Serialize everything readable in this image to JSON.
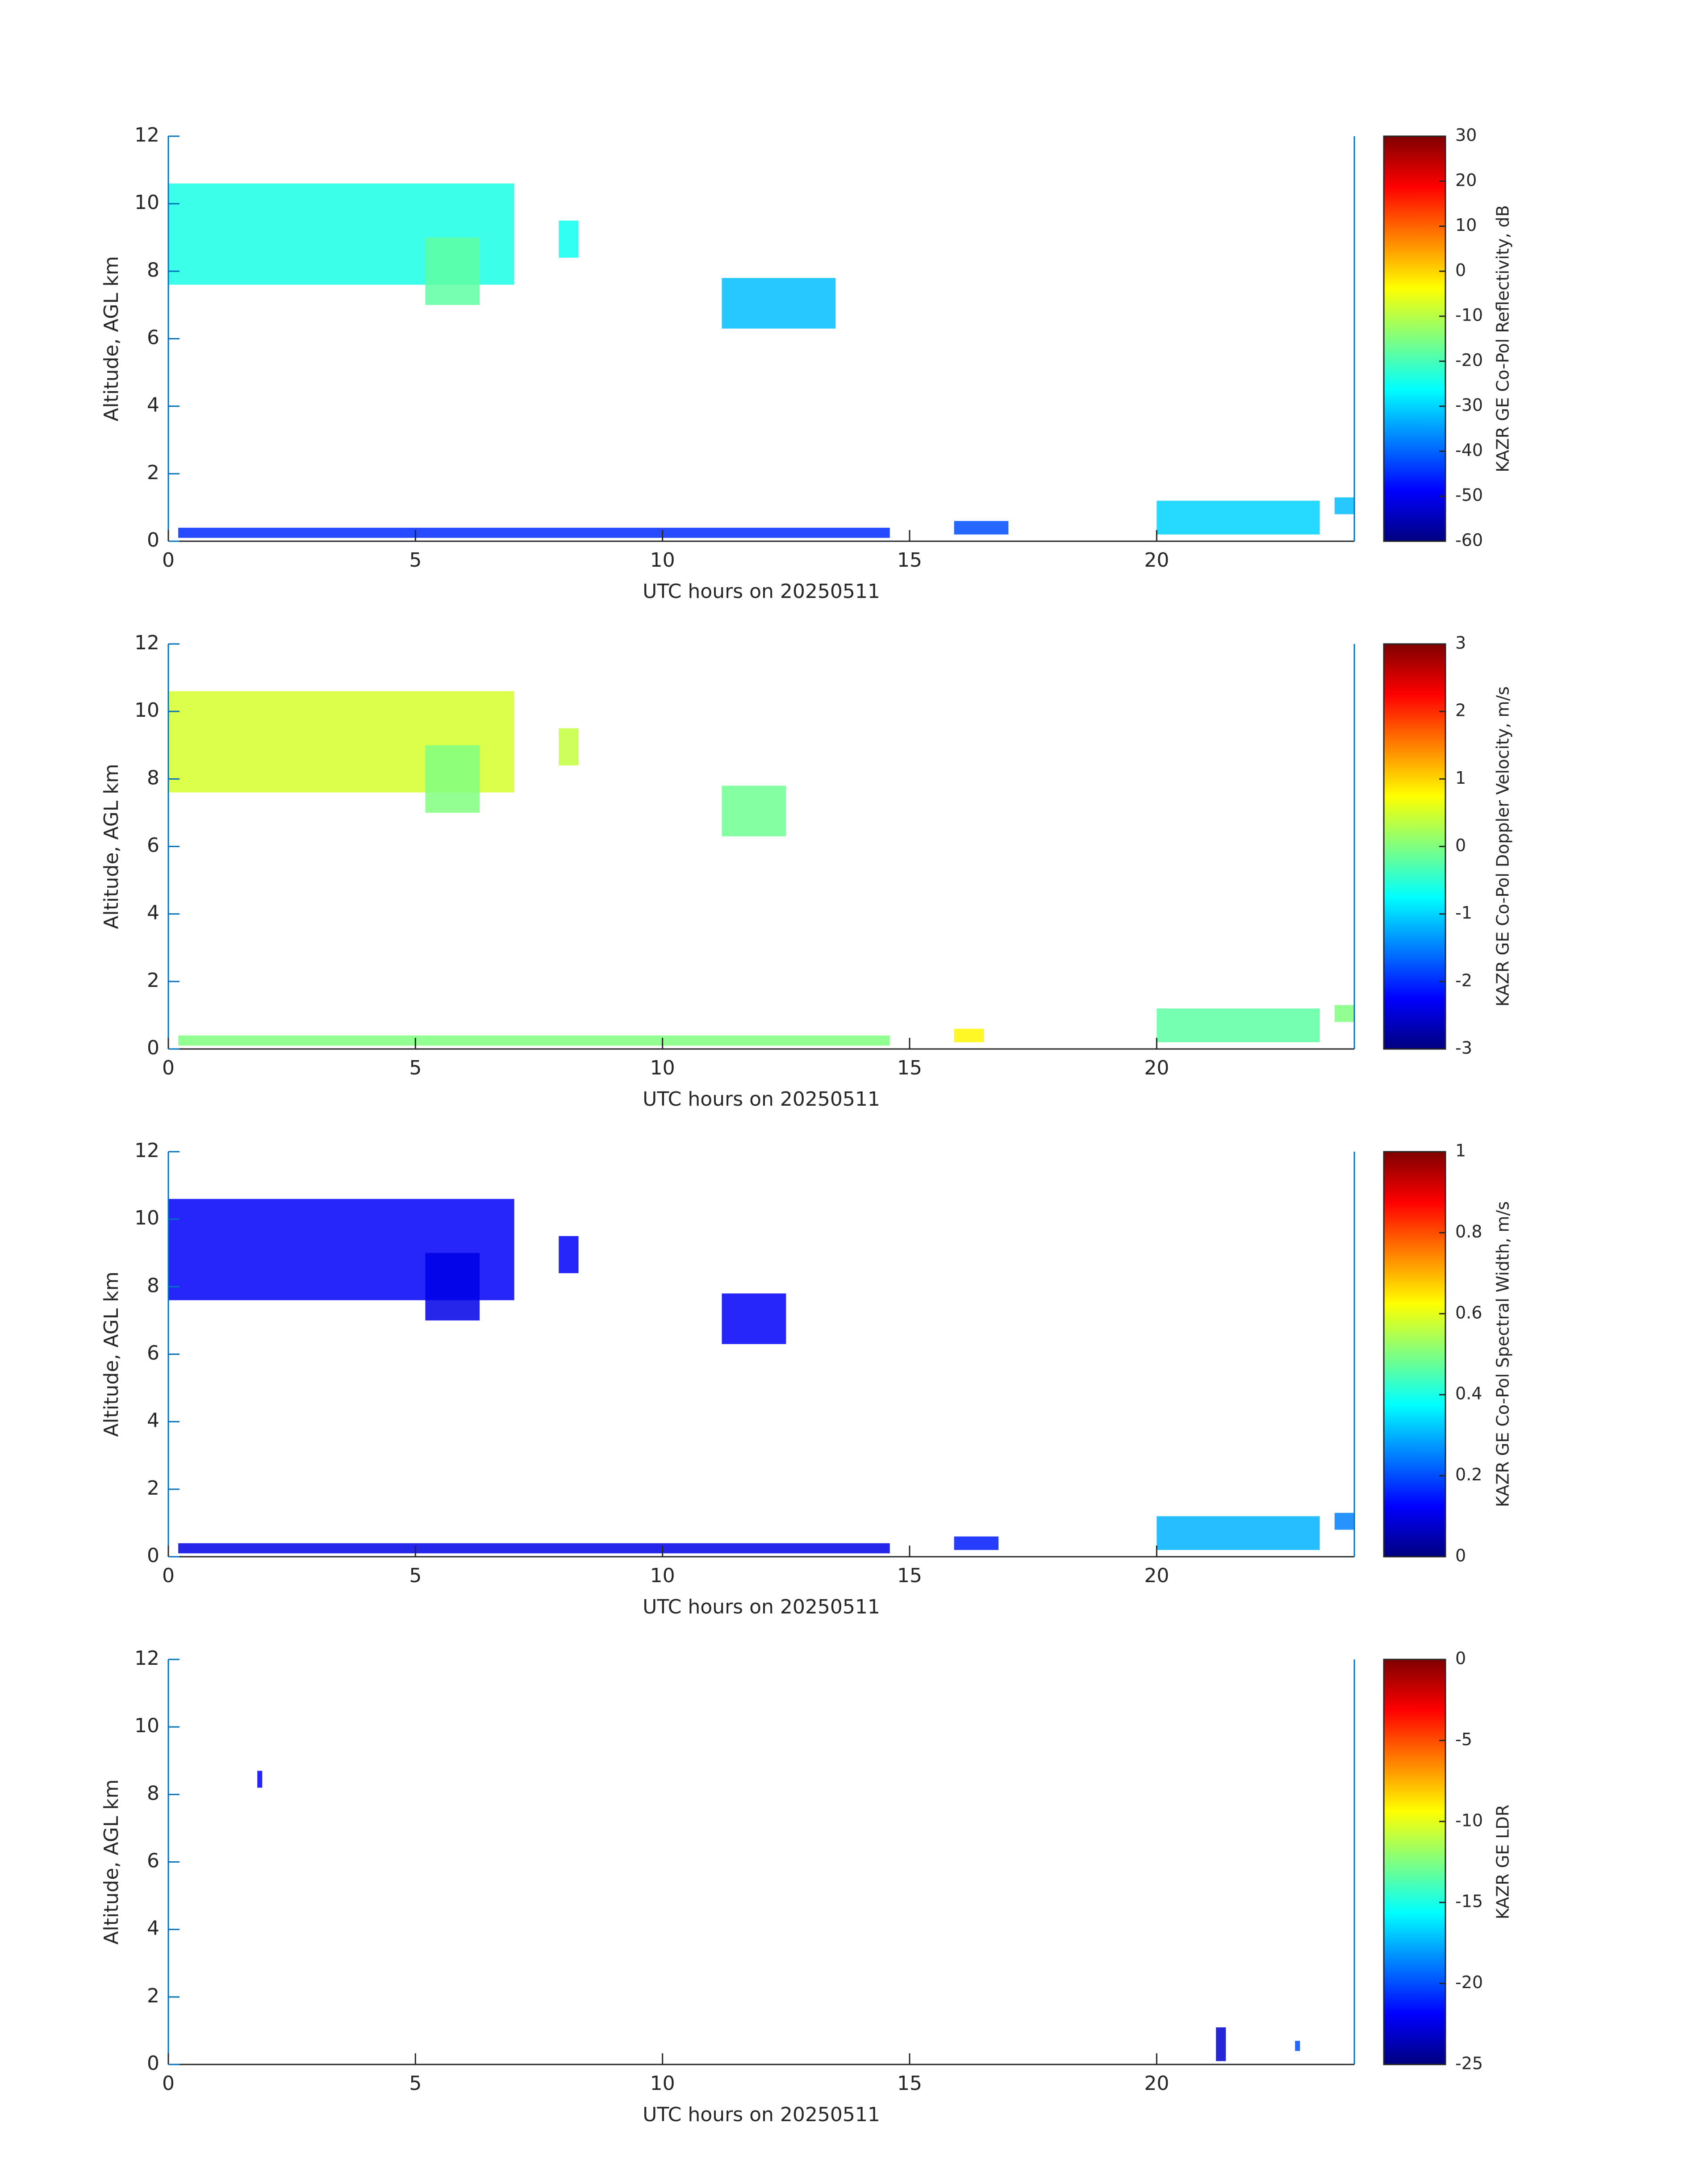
{
  "chart_data": [
    {
      "type": "heatmap",
      "xlabel": "UTC hours on 20250511",
      "ylabel": "Altitude, AGL km",
      "xlim": [
        0,
        24
      ],
      "xticks": [
        0,
        5,
        10,
        15,
        20
      ],
      "ylim": [
        0,
        12
      ],
      "yticks": [
        0,
        2,
        4,
        6,
        8,
        10,
        12
      ],
      "colorbar": {
        "label": "KAZR GE Co-Pol Reflectivity, dB",
        "lim": [
          -60,
          30
        ],
        "ticks": [
          -60,
          -50,
          -40,
          -30,
          -20,
          -10,
          0,
          10,
          20,
          30
        ]
      },
      "regions": [
        {
          "x": [
            0,
            7
          ],
          "y": [
            7.6,
            10.6
          ],
          "value": -24
        },
        {
          "x": [
            5.2,
            6.3
          ],
          "y": [
            7,
            9
          ],
          "value": -18
        },
        {
          "x": [
            7.9,
            8.3
          ],
          "y": [
            8.4,
            9.5
          ],
          "value": -25
        },
        {
          "x": [
            11.2,
            13.5
          ],
          "y": [
            6.3,
            7.8
          ],
          "value": -32
        },
        {
          "x": [
            0.2,
            14.6
          ],
          "y": [
            0.1,
            0.4
          ],
          "value": -45
        },
        {
          "x": [
            15.9,
            17
          ],
          "y": [
            0.2,
            0.6
          ],
          "value": -42
        },
        {
          "x": [
            20,
            23.3
          ],
          "y": [
            0.2,
            1.2
          ],
          "value": -30
        },
        {
          "x": [
            23.6,
            24
          ],
          "y": [
            0.8,
            1.3
          ],
          "value": -32
        }
      ]
    },
    {
      "type": "heatmap",
      "xlabel": "UTC hours on 20250511",
      "ylabel": "Altitude, AGL km",
      "xlim": [
        0,
        24
      ],
      "xticks": [
        0,
        5,
        10,
        15,
        20
      ],
      "ylim": [
        0,
        12
      ],
      "yticks": [
        0,
        2,
        4,
        6,
        8,
        10,
        12
      ],
      "colorbar": {
        "label": "KAZR GE Co-Pol Doppler Velocity, m/s",
        "lim": [
          -3,
          3
        ],
        "ticks": [
          -3,
          -2,
          -1,
          0,
          1,
          2,
          3
        ]
      },
      "regions": [
        {
          "x": [
            0,
            7
          ],
          "y": [
            7.6,
            10.6
          ],
          "value": 0.5
        },
        {
          "x": [
            5.2,
            6.3
          ],
          "y": [
            7,
            9
          ],
          "value": 0
        },
        {
          "x": [
            7.9,
            8.3
          ],
          "y": [
            8.4,
            9.5
          ],
          "value": 0.4
        },
        {
          "x": [
            11.2,
            12.5
          ],
          "y": [
            6.3,
            7.8
          ],
          "value": -0.1
        },
        {
          "x": [
            0.2,
            14.6
          ],
          "y": [
            0.1,
            0.4
          ],
          "value": 0
        },
        {
          "x": [
            15.9,
            16.5
          ],
          "y": [
            0.2,
            0.6
          ],
          "value": 0.8
        },
        {
          "x": [
            20,
            23.3
          ],
          "y": [
            0.2,
            1.2
          ],
          "value": -0.2
        },
        {
          "x": [
            23.6,
            24
          ],
          "y": [
            0.8,
            1.3
          ],
          "value": 0
        }
      ]
    },
    {
      "type": "heatmap",
      "xlabel": "UTC hours on 20250511",
      "ylabel": "Altitude, AGL km",
      "xlim": [
        0,
        24
      ],
      "xticks": [
        0,
        5,
        10,
        15,
        20
      ],
      "ylim": [
        0,
        12
      ],
      "yticks": [
        0,
        2,
        4,
        6,
        8,
        10,
        12
      ],
      "colorbar": {
        "label": "KAZR GE Co-Pol Spectral Width, m/s",
        "lim": [
          0,
          1
        ],
        "ticks": [
          0,
          0.2,
          0.4,
          0.6,
          0.8,
          1
        ]
      },
      "regions": [
        {
          "x": [
            0,
            7
          ],
          "y": [
            7.6,
            10.6
          ],
          "value": 0.12
        },
        {
          "x": [
            5.2,
            6.3
          ],
          "y": [
            7,
            9
          ],
          "value": 0.1
        },
        {
          "x": [
            7.9,
            8.3
          ],
          "y": [
            8.4,
            9.5
          ],
          "value": 0.12
        },
        {
          "x": [
            11.2,
            12.5
          ],
          "y": [
            6.3,
            7.8
          ],
          "value": 0.12
        },
        {
          "x": [
            0.2,
            14.6
          ],
          "y": [
            0.1,
            0.4
          ],
          "value": 0.1
        },
        {
          "x": [
            15.9,
            16.8
          ],
          "y": [
            0.2,
            0.6
          ],
          "value": 0.15
        },
        {
          "x": [
            20,
            23.3
          ],
          "y": [
            0.2,
            1.2
          ],
          "value": 0.3
        },
        {
          "x": [
            23.6,
            24
          ],
          "y": [
            0.8,
            1.3
          ],
          "value": 0.25
        }
      ]
    },
    {
      "type": "heatmap",
      "xlabel": "UTC hours on 20250511",
      "ylabel": "Altitude, AGL km",
      "xlim": [
        0,
        24
      ],
      "xticks": [
        0,
        5,
        10,
        15,
        20
      ],
      "ylim": [
        0,
        12
      ],
      "yticks": [
        0,
        2,
        4,
        6,
        8,
        10,
        12
      ],
      "colorbar": {
        "label": "KAZR GE LDR",
        "lim": [
          -25,
          0
        ],
        "ticks": [
          -25,
          -20,
          -15,
          -10,
          -5,
          0
        ]
      },
      "regions": [
        {
          "x": [
            1.8,
            1.9
          ],
          "y": [
            8.2,
            8.7
          ],
          "value": -22
        },
        {
          "x": [
            21.2,
            21.4
          ],
          "y": [
            0.1,
            1.1
          ],
          "value": -23
        },
        {
          "x": [
            22.8,
            22.9
          ],
          "y": [
            0.4,
            0.7
          ],
          "value": -20
        }
      ]
    }
  ]
}
